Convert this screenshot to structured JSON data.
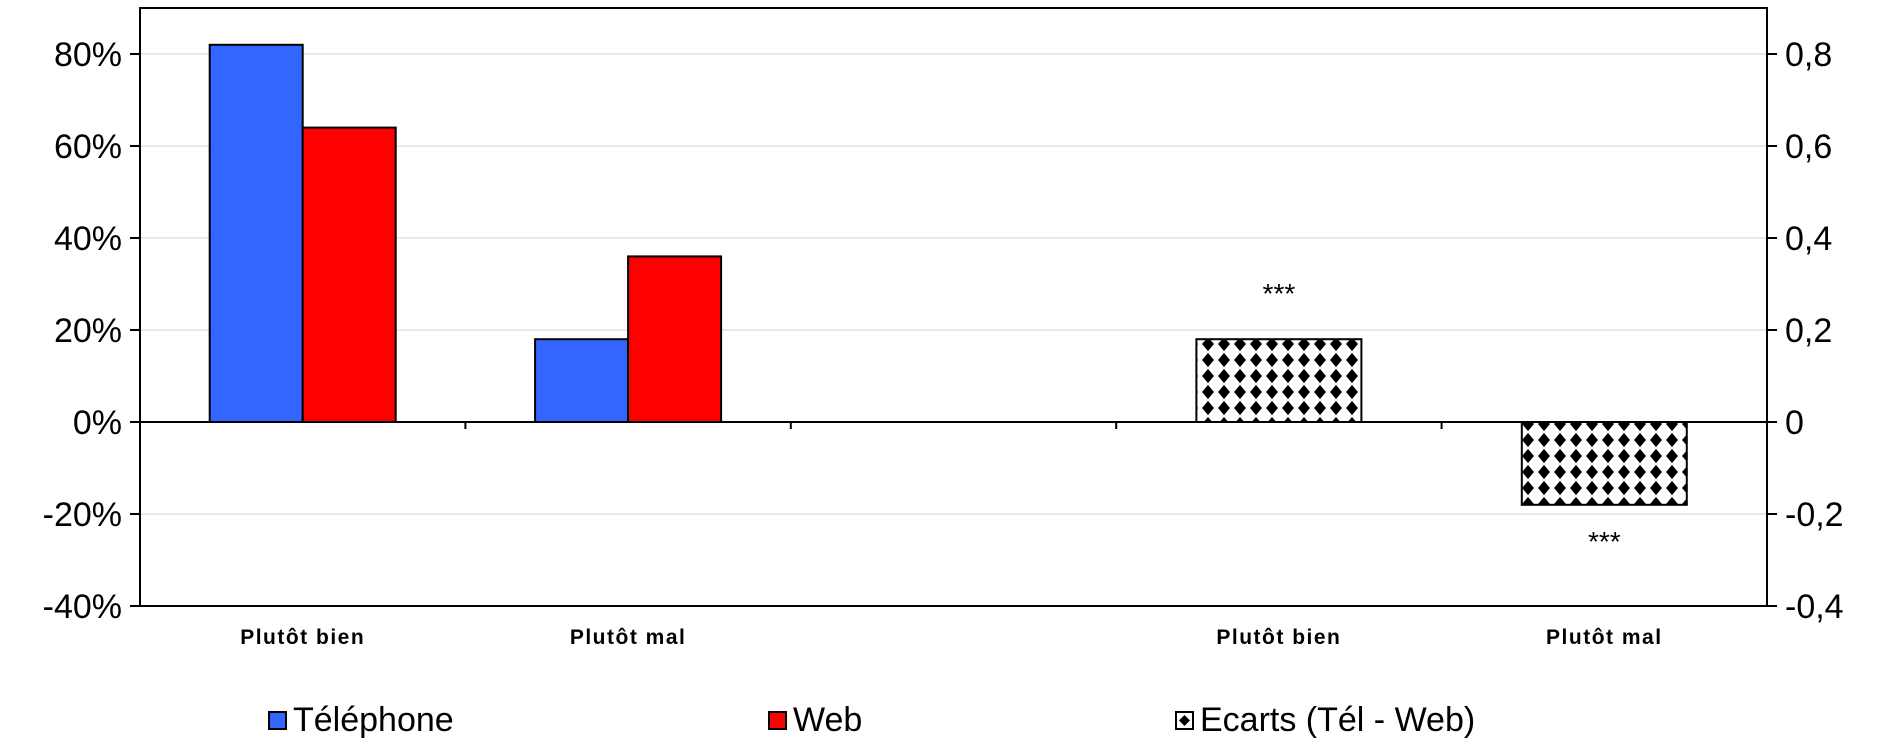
{
  "chart_data": {
    "type": "bar",
    "y_left": {
      "range": [
        -0.4,
        0.9
      ],
      "ticks": [
        -0.4,
        -0.2,
        0,
        0.2,
        0.4,
        0.6,
        0.8
      ],
      "tick_labels": [
        "-40%",
        "-20%",
        "0%",
        "20%",
        "40%",
        "60%",
        "80%"
      ]
    },
    "y_right": {
      "range": [
        -0.4,
        0.9
      ],
      "ticks": [
        -0.4,
        -0.2,
        0,
        0.2,
        0.4,
        0.6,
        0.8
      ],
      "tick_labels": [
        "-0,4",
        "-0,2",
        "0",
        "0,2",
        "0,4",
        "0,6",
        "0,8"
      ]
    },
    "grid": true,
    "legend_position": "bottom",
    "groups": [
      {
        "category": "Plutôt bien",
        "bars": [
          {
            "series": "Téléphone",
            "value": 0.82
          },
          {
            "series": "Web",
            "value": 0.64
          }
        ]
      },
      {
        "category": "Plutôt mal",
        "bars": [
          {
            "series": "Téléphone",
            "value": 0.18
          },
          {
            "series": "Web",
            "value": 0.36
          }
        ]
      },
      {
        "category": "",
        "bars": []
      },
      {
        "category": "Plutôt bien",
        "bars": [
          {
            "series": "Ecarts (Tél - Web)",
            "value": 0.18,
            "annotation": "***"
          }
        ]
      },
      {
        "category": "Plutôt mal",
        "bars": [
          {
            "series": "Ecarts (Tél - Web)",
            "value": -0.18,
            "annotation": "***"
          }
        ]
      }
    ],
    "series": [
      {
        "name": "Téléphone",
        "color": "#3366ff",
        "pattern": "solid"
      },
      {
        "name": "Web",
        "color": "#ff0000",
        "pattern": "solid"
      },
      {
        "name": "Ecarts (Tél - Web)",
        "color": "#000000",
        "pattern": "checker"
      }
    ]
  }
}
